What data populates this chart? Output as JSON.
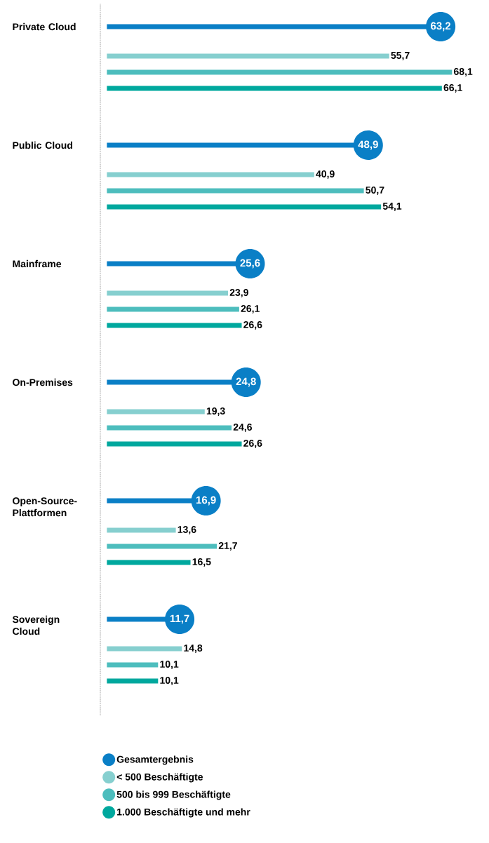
{
  "chart_data": {
    "type": "bar",
    "orientation": "horizontal",
    "categories": [
      "Private Cloud",
      "Public Cloud",
      "Mainframe",
      "On-Premises",
      "Open-Source-Plattformen",
      "Sovereign Cloud"
    ],
    "series": [
      {
        "name": "Gesamtergebnis",
        "color": "#0a7fc6",
        "values": [
          63.2,
          48.9,
          25.6,
          24.8,
          16.9,
          11.7
        ],
        "value_labels": [
          "63,2",
          "48,9",
          "25,6",
          "24,8",
          "16,9",
          "11,7"
        ]
      },
      {
        "name": "< 500 Beschäftigte",
        "color": "#86cfcf",
        "values": [
          55.7,
          40.9,
          23.9,
          19.3,
          13.6,
          14.8
        ],
        "value_labels": [
          "55,7",
          "40,9",
          "23,9",
          "19,3",
          "13,6",
          "14,8"
        ]
      },
      {
        "name": "500 bis 999 Beschäftigte",
        "color": "#4dbdbd",
        "values": [
          68.1,
          50.7,
          26.1,
          24.6,
          21.7,
          10.1
        ],
        "value_labels": [
          "68,1",
          "50,7",
          "26,1",
          "24,6",
          "21,7",
          "10,1"
        ]
      },
      {
        "name": "1.000 Beschäftigte und mehr",
        "color": "#00a89e",
        "values": [
          66.1,
          54.1,
          26.6,
          26.6,
          16.5,
          10.1
        ],
        "value_labels": [
          "66,1",
          "54,1",
          "26,6",
          "26,6",
          "16,5",
          "10,1"
        ]
      }
    ],
    "legend": "bottom"
  }
}
